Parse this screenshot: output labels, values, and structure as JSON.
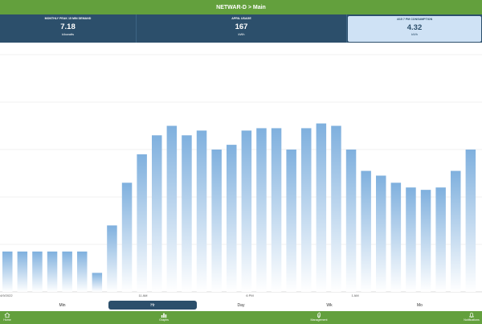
{
  "header": {
    "title": "NETWAR-D > Main"
  },
  "stats": [
    {
      "label": "MONTHLY PEAK 15 MIN DEMAND",
      "value": "7.18",
      "unit": "kilowatts"
    },
    {
      "label": "APRIL USAGE",
      "value": "167",
      "unit": "kWh"
    },
    {
      "label": "4/15 7 PM CONSUMPTION",
      "value": "4.32",
      "unit": "kWh"
    }
  ],
  "ranges": [
    "Min",
    "Hr",
    "Day",
    "Wk",
    "Mo"
  ],
  "active_range": "Hr",
  "nav": [
    {
      "label": "Home",
      "icon": "home-icon"
    },
    {
      "label": "Graphs",
      "icon": "bar-chart-icon"
    },
    {
      "label": "Management",
      "icon": "leaf-icon"
    },
    {
      "label": "Notifications",
      "icon": "bell-icon"
    }
  ],
  "colors": {
    "header_green": "#63a03d",
    "stat_blue": "#2c4f6b",
    "selected_stat": "#cfe2f5",
    "bar_top": "#7fb0de",
    "bar_bottom": "#ffffff"
  },
  "chart_data": {
    "type": "bar",
    "x_tick_labels": [
      "4/9/2022",
      "11 AM",
      "6 PM",
      "1 AM"
    ],
    "values": [
      0.85,
      0.85,
      0.85,
      0.85,
      0.85,
      0.85,
      0.4,
      1.4,
      2.3,
      2.9,
      3.3,
      3.5,
      3.3,
      3.4,
      3.0,
      3.1,
      3.4,
      3.45,
      3.45,
      3.0,
      3.45,
      3.55,
      3.5,
      3.0,
      2.55,
      2.45,
      2.3,
      2.2,
      2.15,
      2.2,
      2.55,
      3.0
    ],
    "ylim": [
      0,
      5
    ],
    "grid": true
  }
}
